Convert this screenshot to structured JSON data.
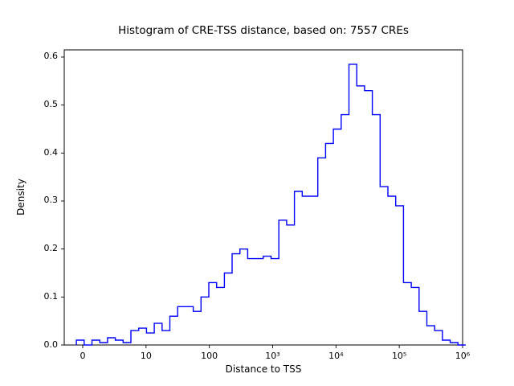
{
  "figure": {
    "title": "Histogram of CRE-TSS distance, based on: 7557 CREs",
    "xlabel": "Distance to TSS",
    "ylabel": "Density"
  },
  "chart_data": {
    "type": "line",
    "subtype": "step_histogram",
    "title": "Histogram of CRE-TSS distance, based on: 7557 CREs",
    "xlabel": "Distance to TSS",
    "ylabel": "Density",
    "x_scale": "symlog (decades of distance, 0 then 10^1..10^6)",
    "x_tick_labels": [
      "0",
      "10",
      "100",
      "10³",
      "10⁴",
      "10⁵",
      "10⁶"
    ],
    "x_tick_decades": [
      0,
      1,
      2,
      3,
      4,
      5,
      6
    ],
    "y_tick_labels": [
      "0.0",
      "0.1",
      "0.2",
      "0.3",
      "0.4",
      "0.5",
      "0.6"
    ],
    "y_tick_values": [
      0.0,
      0.1,
      0.2,
      0.3,
      0.4,
      0.5,
      0.6
    ],
    "ylim": [
      0,
      0.615
    ],
    "line_color": "#0000ff",
    "grid": false,
    "legend": "none",
    "bins": {
      "start_decade": -0.1,
      "width_decade": 0.123,
      "count": 50
    },
    "densities": [
      0.01,
      0.0,
      0.01,
      0.005,
      0.015,
      0.01,
      0.005,
      0.03,
      0.035,
      0.025,
      0.045,
      0.03,
      0.06,
      0.08,
      0.08,
      0.07,
      0.1,
      0.13,
      0.12,
      0.15,
      0.19,
      0.2,
      0.18,
      0.18,
      0.185,
      0.18,
      0.26,
      0.25,
      0.32,
      0.31,
      0.31,
      0.39,
      0.42,
      0.45,
      0.48,
      0.585,
      0.54,
      0.53,
      0.48,
      0.33,
      0.31,
      0.29,
      0.13,
      0.12,
      0.07,
      0.04,
      0.03,
      0.01,
      0.005,
      0.0
    ]
  }
}
